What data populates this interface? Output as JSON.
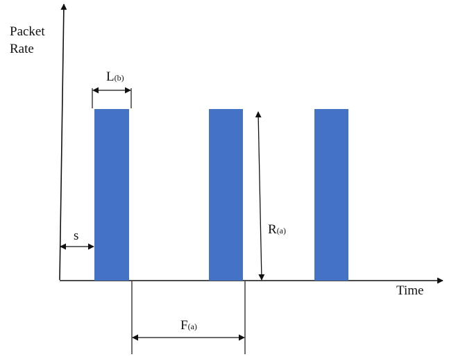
{
  "diagram": {
    "y_axis_label_line1": "Packet",
    "y_axis_label_line2": "Rate",
    "x_axis_label": "Time",
    "pulse_width_label": "L",
    "pulse_width_subscript": "(b)",
    "start_offset_label": "s",
    "rate_label": "R",
    "rate_subscript": "(a)",
    "period_label": "F",
    "period_subscript": "(a)",
    "pulse_count": 3,
    "bar_color": "#4472c4",
    "line_color": "#111111"
  }
}
